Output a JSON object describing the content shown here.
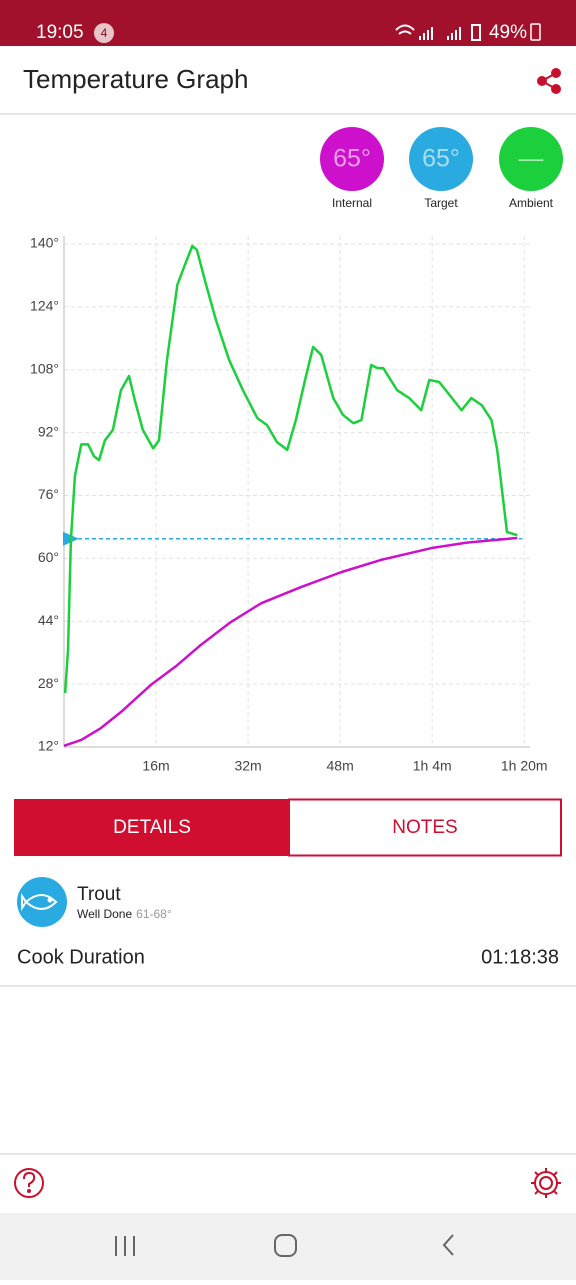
{
  "status_bar": {
    "time": "19:05",
    "notification_count": "4",
    "battery": "49%"
  },
  "header": {
    "title": "Temperature Graph"
  },
  "chart_data": {
    "type": "line",
    "series": [
      {
        "name": "Internal",
        "reading": "65°",
        "color": "#cc10cc",
        "x": [
          0,
          3,
          6.4,
          9.9,
          15.1,
          19.5,
          23.8,
          29,
          34.3,
          41.2,
          48.2,
          55.1,
          63.8,
          70,
          78.8
        ],
        "values": [
          12.3,
          13.8,
          16.8,
          20.9,
          27.8,
          32.6,
          38,
          43.8,
          48.6,
          52.7,
          56.5,
          59.6,
          62.6,
          64,
          65.2
        ]
      },
      {
        "name": "Ambient",
        "reading": "—",
        "color": "#1ccf3c",
        "x": [
          0.2,
          0.7,
          1.2,
          1.9,
          3.0,
          4.2,
          5.2,
          6.1,
          7.1,
          8.5,
          9.9,
          11.3,
          12.3,
          13.7,
          15.5,
          16.5,
          17.9,
          19.7,
          21.2,
          22.3,
          23.1,
          24.7,
          26.4,
          28.7,
          31.1,
          33.6,
          35.3,
          37.0,
          38.8,
          40.3,
          41.9,
          43.3,
          44.7,
          46.8,
          48.5,
          50.3,
          51.7,
          53.4,
          54.5,
          55.5,
          57.9,
          60.0,
          62.1,
          63.5,
          65.2,
          67.0,
          69.1,
          70.8,
          72.6,
          74.3,
          75.3,
          77.0,
          78.8
        ],
        "values": [
          25.7,
          36.7,
          64.7,
          81,
          89,
          89,
          86,
          85,
          90,
          92.7,
          102.8,
          106.4,
          100.3,
          92.7,
          88,
          90,
          110.5,
          129.6,
          135.4,
          139.5,
          138.5,
          129.6,
          120.7,
          110.5,
          102.8,
          95.7,
          93.9,
          89.6,
          87.6,
          95.2,
          105.4,
          113.8,
          111.8,
          100.8,
          96.5,
          94.4,
          95.2,
          109.2,
          108.4,
          108.4,
          102.8,
          100.8,
          97.7,
          105.4,
          104.9,
          101.6,
          97.7,
          100.8,
          99,
          95.2,
          87.6,
          66.7,
          65.9
        ]
      }
    ],
    "target": {
      "name": "Target",
      "reading": "65°",
      "value": 65,
      "color": "#29abe2"
    },
    "xlim": [
      0,
      81
    ],
    "xticks": [
      {
        "value": 16,
        "label": "16m"
      },
      {
        "value": 32,
        "label": "32m"
      },
      {
        "value": 48,
        "label": "48m"
      },
      {
        "value": 64,
        "label": "1h 4m"
      },
      {
        "value": 80,
        "label": "1h 20m"
      }
    ],
    "ylim": [
      12,
      140
    ],
    "yticks": [
      {
        "value": 12,
        "label": "12°"
      },
      {
        "value": 28,
        "label": "28°"
      },
      {
        "value": 44,
        "label": "44°"
      },
      {
        "value": 60,
        "label": "60°"
      },
      {
        "value": 76,
        "label": "76°"
      },
      {
        "value": 92,
        "label": "92°"
      },
      {
        "value": 108,
        "label": "108°"
      },
      {
        "value": 124,
        "label": "124°"
      },
      {
        "value": 140,
        "label": "140°"
      }
    ],
    "grid": true
  },
  "tabs": [
    "DETAILS",
    "NOTES"
  ],
  "details": {
    "food": "Trout",
    "doneness": "Well Done",
    "range": "61-68°",
    "duration_label": "Cook Duration",
    "duration": "01:18:38"
  }
}
